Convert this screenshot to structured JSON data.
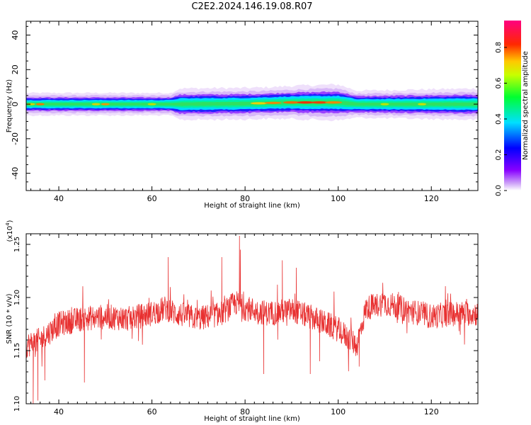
{
  "title": "C2E2.2024.146.19.08.R07",
  "chart_data": [
    {
      "type": "heatmap",
      "xlabel": "Height of straight line (km)",
      "ylabel": "Frequency (Hz)",
      "xlim": [
        33,
        130
      ],
      "ylim": [
        -50,
        48
      ],
      "xticks": [
        40,
        60,
        80,
        100,
        120
      ],
      "yticks": [
        -40,
        -20,
        0,
        20,
        40
      ],
      "band_center_hz": [
        [
          33,
          0
        ],
        [
          50,
          0
        ],
        [
          65,
          0
        ],
        [
          80,
          0.3
        ],
        [
          90,
          1
        ],
        [
          100,
          1
        ],
        [
          104,
          0
        ],
        [
          120,
          0
        ],
        [
          130,
          0
        ]
      ],
      "band_halfwidth_hz": [
        [
          33,
          2.5
        ],
        [
          64,
          2.5
        ],
        [
          66,
          3.5
        ],
        [
          85,
          3.5
        ],
        [
          100,
          4
        ],
        [
          104,
          3
        ],
        [
          130,
          3.5
        ]
      ],
      "colorbar": {
        "label": "Normalized spectral amplitude",
        "range": [
          0,
          0.95
        ],
        "ticks": [
          0.0,
          0.2,
          0.4,
          0.6,
          0.8
        ]
      }
    },
    {
      "type": "line",
      "xlabel": "Height of straight line (km)",
      "ylabel": "SNR (10 * v/v)",
      "scale_label": "(x10",
      "scale_exp": "4",
      "scale_close": ")",
      "xlim": [
        33,
        130
      ],
      "ylim": [
        1.1,
        1.26
      ],
      "xticks": [
        40,
        60,
        80,
        100,
        120
      ],
      "yticks": [
        "1.10",
        "1.15",
        "1.20",
        "1.25"
      ],
      "series": [
        {
          "color": "#e83030",
          "mean_trend": [
            [
              33,
              1.155
            ],
            [
              36,
              1.16
            ],
            [
              40,
              1.175
            ],
            [
              45,
              1.18
            ],
            [
              50,
              1.182
            ],
            [
              55,
              1.18
            ],
            [
              60,
              1.185
            ],
            [
              63,
              1.19
            ],
            [
              65,
              1.185
            ],
            [
              70,
              1.18
            ],
            [
              75,
              1.185
            ],
            [
              78,
              1.195
            ],
            [
              80,
              1.19
            ],
            [
              85,
              1.185
            ],
            [
              90,
              1.188
            ],
            [
              95,
              1.18
            ],
            [
              100,
              1.17
            ],
            [
              104,
              1.155
            ],
            [
              106,
              1.19
            ],
            [
              110,
              1.195
            ],
            [
              115,
              1.188
            ],
            [
              120,
              1.182
            ],
            [
              125,
              1.185
            ],
            [
              130,
              1.185
            ]
          ],
          "spread": 0.012,
          "extremes": [
            [
              34.5,
              1.1
            ],
            [
              35.5,
              1.103
            ],
            [
              37,
              1.122
            ],
            [
              45.5,
              1.12
            ],
            [
              63.5,
              1.238
            ],
            [
              78.8,
              1.258
            ],
            [
              79,
              1.245
            ],
            [
              75,
              1.238
            ],
            [
              84,
              1.128
            ],
            [
              94,
              1.128
            ],
            [
              96,
              1.14
            ],
            [
              104.5,
              1.135
            ],
            [
              88,
              1.235
            ],
            [
              91,
              1.228
            ]
          ]
        }
      ]
    }
  ]
}
